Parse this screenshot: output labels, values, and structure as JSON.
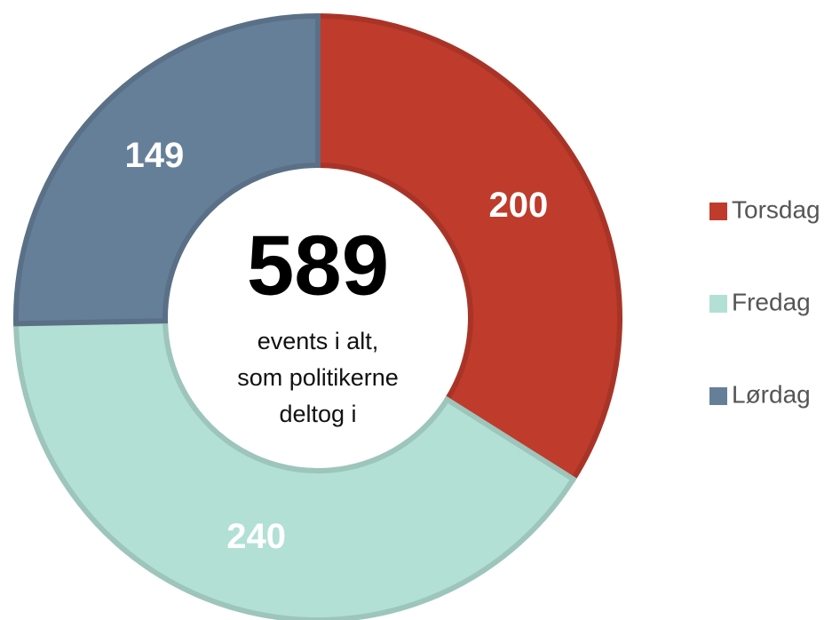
{
  "chart_data": {
    "type": "donut",
    "categories": [
      "Torsdag",
      "Fredag",
      "Lørdag"
    ],
    "values": [
      200,
      240,
      149
    ],
    "colors": [
      "#bf3b2c",
      "#b2e0d4",
      "#667f99"
    ],
    "total": 589,
    "center_label": [
      "events i alt,",
      "som politikerne",
      "deltog i"
    ],
    "legend": "right"
  }
}
